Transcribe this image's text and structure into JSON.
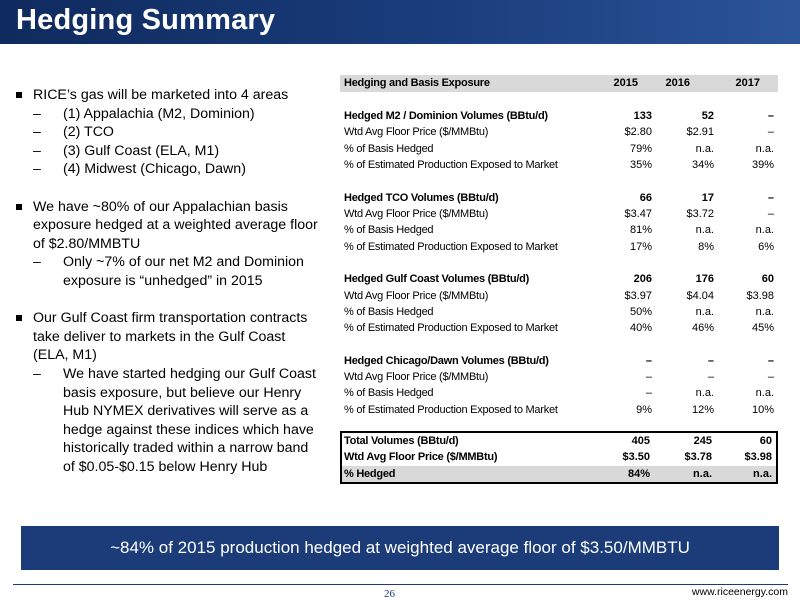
{
  "title": "Hedging Summary",
  "bullets": [
    {
      "text": "RICE’s gas will be marketed into 4 areas",
      "subs": [
        "(1) Appalachia (M2, Dominion)",
        "(2) TCO",
        "(3) Gulf Coast (ELA, M1)",
        "(4) Midwest (Chicago, Dawn)"
      ]
    },
    {
      "text": "We have ~80% of our Appalachian basis exposure hedged at a weighted average floor of $2.80/MMBTU",
      "subs": [
        "Only ~7% of our net M2 and Dominion exposure is “unhedged” in 2015"
      ]
    },
    {
      "text": "Our Gulf Coast firm transportation contracts take deliver to markets in the Gulf Coast (ELA, M1)",
      "subs": [
        "We have started hedging our Gulf Coast basis exposure, but believe our Henry Hub NYMEX derivatives will serve as a hedge against these indices which have historically traded within a narrow band of $0.05-$0.15 below Henry Hub"
      ]
    }
  ],
  "table": {
    "header": {
      "label": "Hedging and Basis Exposure",
      "y1": "2015",
      "y2": "2016",
      "y3": "2017"
    },
    "sections": [
      {
        "title": [
          "Hedged M2 / Dominion Volumes (BBtu/d)",
          "133",
          "52",
          "–"
        ],
        "rows": [
          [
            "Wtd Avg Floor Price ($/MMBtu)",
            "$2.80",
            "$2.91",
            "–"
          ],
          [
            "% of Basis Hedged",
            "79%",
            "n.a.",
            "n.a."
          ],
          [
            "% of Estimated Production Exposed to Market",
            "35%",
            "34%",
            "39%"
          ]
        ]
      },
      {
        "title": [
          "Hedged TCO Volumes (BBtu/d)",
          "66",
          "17",
          "–"
        ],
        "rows": [
          [
            "Wtd Avg Floor Price ($/MMBtu)",
            "$3.47",
            "$3.72",
            "–"
          ],
          [
            "% of Basis Hedged",
            "81%",
            "n.a.",
            "n.a."
          ],
          [
            "% of Estimated Production Exposed to Market",
            "17%",
            "8%",
            "6%"
          ]
        ]
      },
      {
        "title": [
          "Hedged Gulf Coast Volumes (BBtu/d)",
          "206",
          "176",
          "60"
        ],
        "rows": [
          [
            "Wtd Avg Floor Price ($/MMBtu)",
            "$3.97",
            "$4.04",
            "$3.98"
          ],
          [
            "% of Basis Hedged",
            "50%",
            "n.a.",
            "n.a."
          ],
          [
            "% of Estimated Production Exposed to Market",
            "40%",
            "46%",
            "45%"
          ]
        ]
      },
      {
        "title": [
          "Hedged Chicago/Dawn Volumes (BBtu/d)",
          "–",
          "–",
          "–"
        ],
        "rows": [
          [
            "Wtd Avg Floor Price ($/MMBtu)",
            "–",
            "–",
            "–"
          ],
          [
            "% of Basis Hedged",
            "–",
            "n.a.",
            "n.a."
          ],
          [
            "% of Estimated Production Exposed to Market",
            "9%",
            "12%",
            "10%"
          ]
        ]
      }
    ],
    "totals": [
      [
        "Total Volumes (BBtu/d)",
        "405",
        "245",
        "60"
      ],
      [
        "Wtd Avg Floor Price ($/MMBtu)",
        "$3.50",
        "$3.78",
        "$3.98"
      ],
      [
        "% Hedged",
        "84%",
        "n.a.",
        "n.a."
      ]
    ]
  },
  "banner": "~84% of 2015 production hedged at weighted average floor of $3.50/MMBTU",
  "page_number": "26",
  "website": "www.riceenergy.com"
}
